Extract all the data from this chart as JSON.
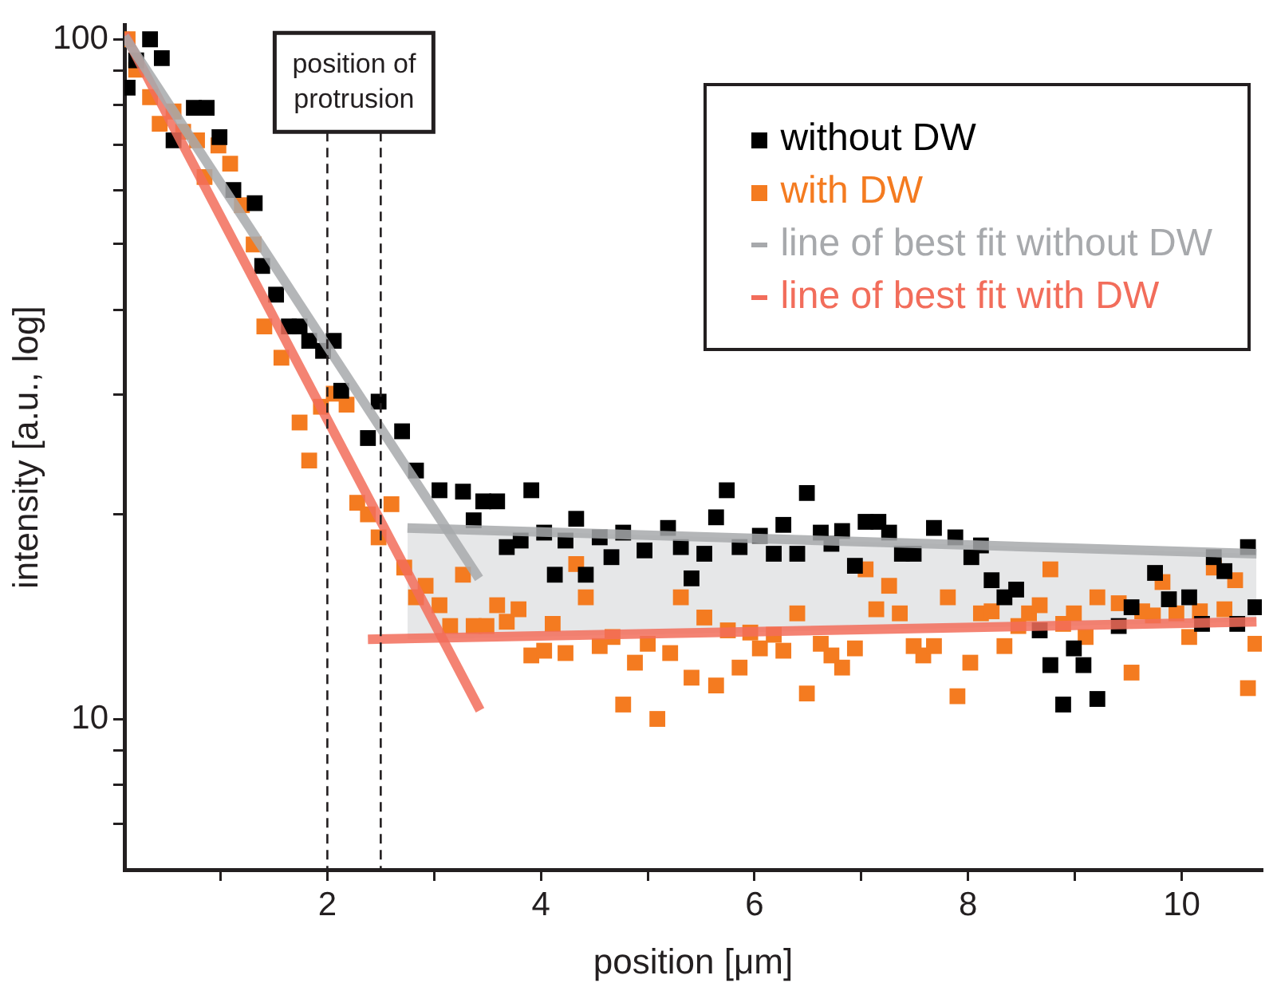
{
  "chart_data": {
    "type": "scatter",
    "xlabel": "position [μm]",
    "ylabel": "intensity [a.u., log]",
    "xlim": [
      0.1,
      10.75
    ],
    "ylim": [
      6,
      105
    ],
    "log": "y",
    "grid": false,
    "legend": "top right",
    "xticks": [
      {
        "value": 1,
        "label": null
      },
      2,
      {
        "value": 3,
        "label": null
      },
      4,
      {
        "value": 5,
        "label": null
      },
      6,
      {
        "value": 7,
        "label": null
      },
      8,
      {
        "value": 9,
        "label": null
      },
      10
    ],
    "yticks": [
      {
        "value": 7,
        "label": null
      },
      {
        "value": 8,
        "label": null
      },
      {
        "value": 9,
        "label": null
      },
      10,
      {
        "value": 20,
        "label": null
      },
      {
        "value": 30,
        "label": null
      },
      {
        "value": 40,
        "label": null
      },
      {
        "value": 50,
        "label": null
      },
      {
        "value": 60,
        "label": null
      },
      {
        "value": 70,
        "label": null
      },
      {
        "value": 80,
        "label": null
      },
      {
        "value": 90,
        "label": null
      },
      100
    ],
    "ref_lines": [
      {
        "axis": "x",
        "value": 2,
        "line_style": "dashed",
        "color": "#231f20"
      },
      {
        "axis": "x",
        "value": 2.5,
        "line_style": "dashed",
        "color": "#231f20"
      }
    ],
    "annotations": [
      "position of protrusion"
    ],
    "series": [
      {
        "name": "without DW",
        "type": "scatter",
        "marker": "square",
        "color": "#000000",
        "x": [
          0.13,
          0.21,
          0.34,
          0.45,
          0.56,
          0.75,
          0.87,
          0.99,
          1.12,
          1.32,
          1.39,
          1.52,
          1.64,
          1.74,
          1.83,
          1.96,
          2.06,
          2.13,
          2.38,
          2.48,
          2.7,
          2.83,
          3.05,
          3.27,
          3.46,
          3.59,
          3.37,
          3.68,
          3.81,
          3.91,
          4.03,
          4.13,
          4.23,
          4.33,
          4.42,
          4.55,
          4.66,
          4.77,
          4.97,
          5.19,
          5.31,
          5.41,
          5.53,
          5.64,
          5.74,
          5.86,
          6.05,
          6.18,
          6.27,
          6.4,
          6.49,
          6.62,
          6.72,
          6.82,
          6.94,
          7.04,
          7.16,
          7.26,
          7.38,
          7.49,
          7.68,
          7.88,
          8.03,
          8.12,
          8.22,
          8.34,
          8.45,
          8.67,
          8.77,
          8.89,
          8.99,
          9.08,
          9.21,
          9.41,
          9.53,
          9.75,
          9.88,
          10.07,
          10.19,
          10.3,
          10.4,
          10.52,
          10.62,
          10.69
        ],
        "values": [
          84.9,
          93.1,
          100,
          93.8,
          71,
          79.3,
          79.3,
          71.8,
          60,
          57.4,
          46.4,
          42.1,
          37.8,
          37.8,
          36,
          34.8,
          36,
          30.4,
          25.9,
          29.3,
          26.5,
          23.2,
          21.7,
          21.6,
          20.9,
          20.9,
          19.6,
          17.9,
          18.3,
          21.7,
          18.8,
          16.3,
          18.3,
          19.7,
          16.3,
          18.5,
          17.3,
          18.8,
          17.7,
          19.1,
          17.9,
          16.1,
          17.5,
          19.8,
          21.7,
          17.9,
          18.6,
          17.5,
          19.3,
          17.5,
          21.5,
          18.8,
          18.1,
          18.9,
          16.8,
          19.5,
          19.5,
          18.8,
          17.5,
          17.5,
          19.1,
          18.5,
          17.3,
          18,
          16,
          15.1,
          15.5,
          13.5,
          12,
          10.5,
          12.7,
          12,
          10.7,
          13.7,
          14.6,
          16.4,
          15,
          15.1,
          13.8,
          17.3,
          16.5,
          13.8,
          17.9,
          14.6
        ]
      },
      {
        "name": "with DW",
        "type": "scatter",
        "marker": "square",
        "color": "#f47b20",
        "x": [
          0.13,
          0.21,
          0.34,
          0.43,
          0.56,
          0.65,
          0.78,
          0.98,
          0.85,
          1.09,
          1.2,
          1.31,
          1.41,
          1.57,
          1.74,
          1.83,
          1.94,
          2.06,
          2.18,
          2.28,
          2.38,
          2.48,
          2.6,
          2.72,
          2.83,
          2.92,
          3.05,
          3.15,
          3.27,
          3.37,
          3.49,
          3.59,
          3.68,
          3.79,
          3.91,
          4.03,
          4.11,
          4.23,
          4.33,
          4.42,
          4.55,
          4.67,
          4.77,
          4.88,
          5,
          5.09,
          5.21,
          5.31,
          5.41,
          5.53,
          5.64,
          5.75,
          5.86,
          5.96,
          6.05,
          6.18,
          6.27,
          6.4,
          6.49,
          6.62,
          6.72,
          6.82,
          6.94,
          7.04,
          7.14,
          7.26,
          7.36,
          7.49,
          7.58,
          7.68,
          7.81,
          7.9,
          8.02,
          8.12,
          8.22,
          8.34,
          8.47,
          8.57,
          8.67,
          8.77,
          8.89,
          8.99,
          9.1,
          9.21,
          9.41,
          9.53,
          9.63,
          9.73,
          9.82,
          9.95,
          10.07,
          10.17,
          10.3,
          10.4,
          10.5,
          10.62,
          10.69
        ],
        "values": [
          100,
          90.2,
          82.2,
          75.1,
          78.3,
          73.1,
          71,
          69.8,
          62.7,
          65.6,
          57,
          49.9,
          37.8,
          34,
          27.3,
          24,
          28.8,
          30.1,
          29,
          20.8,
          20,
          18.5,
          20.7,
          16.7,
          15.1,
          15.7,
          14.7,
          13.7,
          16.3,
          13.7,
          13.7,
          14.7,
          13.9,
          14.5,
          12.4,
          12.6,
          13.8,
          12.5,
          16.9,
          15.1,
          12.8,
          13.2,
          10.5,
          12.1,
          12.9,
          10,
          12.5,
          15.1,
          11.5,
          14.1,
          11.2,
          13.5,
          11.9,
          13.4,
          12.7,
          13.3,
          12.6,
          14.3,
          10.9,
          12.9,
          12.4,
          11.9,
          12.7,
          16.6,
          14.5,
          15.7,
          14.3,
          12.8,
          12.4,
          12.8,
          15.1,
          10.8,
          12.1,
          14.3,
          14.4,
          12.8,
          13.7,
          14.3,
          14.7,
          16.6,
          13.8,
          14.3,
          13.2,
          15.1,
          14.8,
          11.7,
          14.4,
          14.2,
          15.9,
          14.3,
          13.2,
          14.4,
          16.7,
          14.5,
          16,
          11.1,
          12.9
        ]
      },
      {
        "name": "line of best fit without DW",
        "type": "line",
        "marker": "none",
        "line_style": "solid",
        "color": "#a7a9ac",
        "x": [
          0.1,
          3.42
        ],
        "values": [
          101,
          16.1
        ]
      },
      {
        "type": "line",
        "marker": "none",
        "line_style": "solid",
        "color": "#a7a9ac",
        "x": [
          2.75,
          10.7
        ],
        "values": [
          19.1,
          17.5
        ],
        "lower": [
          13.1,
          13.9
        ],
        "upper": [
          19.1,
          17.5
        ]
      },
      {
        "name": "line of best fit with DW",
        "type": "line",
        "marker": "none",
        "line_style": "solid",
        "color": "#f26d5b",
        "x": [
          0.1,
          3.43
        ],
        "values": [
          102,
          10.3
        ]
      },
      {
        "type": "line",
        "marker": "none",
        "line_style": "solid",
        "color": "#f26d5b",
        "x": [
          2.38,
          10.7
        ],
        "values": [
          13.1,
          13.9
        ]
      }
    ]
  }
}
